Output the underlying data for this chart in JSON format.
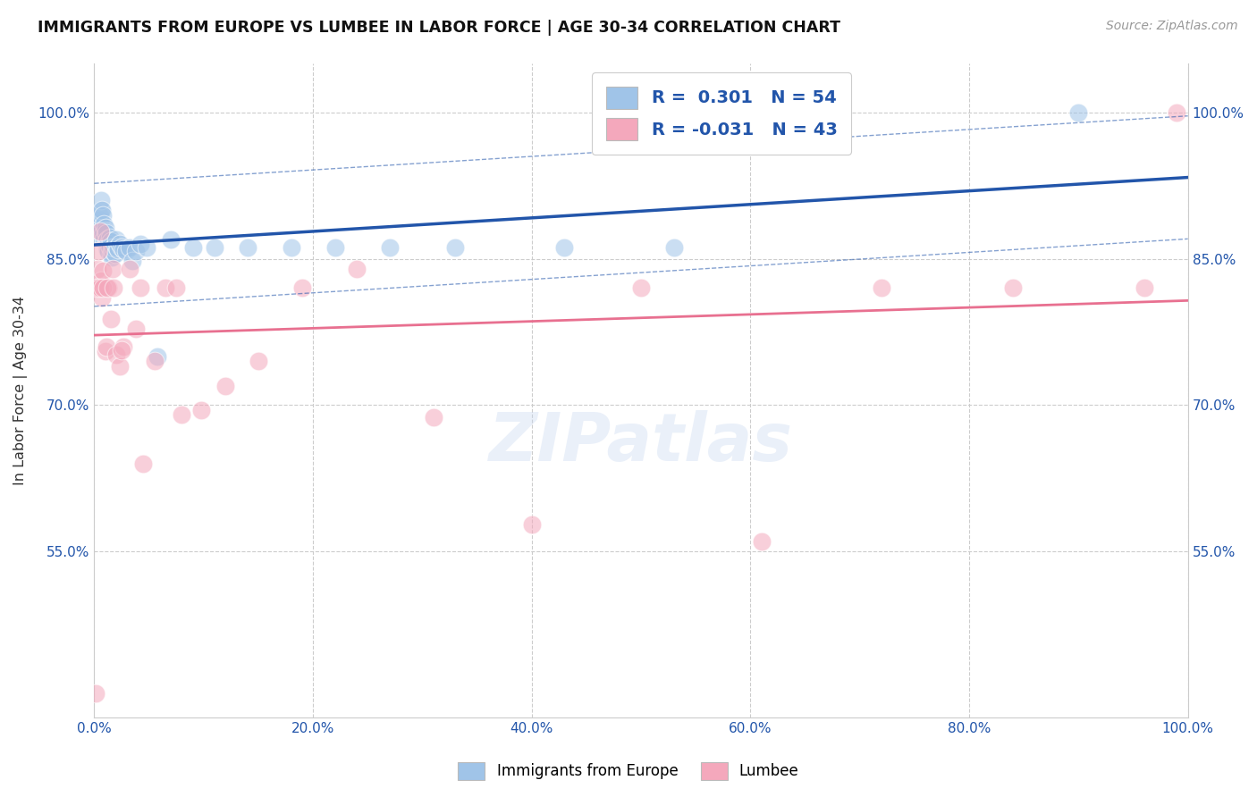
{
  "title": "IMMIGRANTS FROM EUROPE VS LUMBEE IN LABOR FORCE | AGE 30-34 CORRELATION CHART",
  "source": "Source: ZipAtlas.com",
  "ylabel": "In Labor Force | Age 30-34",
  "xlim": [
    0.0,
    1.0
  ],
  "ylim": [
    0.38,
    1.05
  ],
  "xticks": [
    0.0,
    0.2,
    0.4,
    0.6,
    0.8,
    1.0
  ],
  "xticklabels": [
    "0.0%",
    "20.0%",
    "40.0%",
    "60.0%",
    "80.0%",
    "100.0%"
  ],
  "yticks": [
    0.55,
    0.7,
    0.85,
    1.0
  ],
  "yticklabels": [
    "55.0%",
    "70.0%",
    "85.0%",
    "100.0%"
  ],
  "legend_R_blue": "0.301",
  "legend_N_blue": "54",
  "legend_R_pink": "-0.031",
  "legend_N_pink": "43",
  "blue_color": "#a0c4e8",
  "pink_color": "#f4a8bc",
  "trend_blue_color": "#2255aa",
  "trend_pink_color": "#e87090",
  "watermark": "ZIPatlas",
  "blue_scatter_x": [
    0.002,
    0.003,
    0.004,
    0.005,
    0.005,
    0.006,
    0.006,
    0.007,
    0.007,
    0.008,
    0.008,
    0.009,
    0.009,
    0.01,
    0.01,
    0.011,
    0.011,
    0.012,
    0.012,
    0.013,
    0.013,
    0.014,
    0.014,
    0.015,
    0.015,
    0.016,
    0.016,
    0.017,
    0.018,
    0.019,
    0.02,
    0.021,
    0.022,
    0.023,
    0.025,
    0.027,
    0.029,
    0.032,
    0.035,
    0.038,
    0.042,
    0.048,
    0.058,
    0.07,
    0.09,
    0.11,
    0.14,
    0.18,
    0.22,
    0.27,
    0.33,
    0.43,
    0.53,
    0.9
  ],
  "blue_scatter_y": [
    0.875,
    0.88,
    0.885,
    0.89,
    0.895,
    0.9,
    0.91,
    0.9,
    0.88,
    0.895,
    0.875,
    0.885,
    0.87,
    0.878,
    0.882,
    0.876,
    0.868,
    0.86,
    0.87,
    0.865,
    0.858,
    0.872,
    0.862,
    0.868,
    0.855,
    0.86,
    0.852,
    0.858,
    0.862,
    0.855,
    0.87,
    0.862,
    0.86,
    0.865,
    0.862,
    0.86,
    0.858,
    0.862,
    0.848,
    0.858,
    0.865,
    0.862,
    0.75,
    0.87,
    0.862,
    0.862,
    0.862,
    0.862,
    0.862,
    0.862,
    0.862,
    0.862,
    0.862,
    1.0
  ],
  "pink_scatter_x": [
    0.001,
    0.002,
    0.003,
    0.004,
    0.005,
    0.006,
    0.007,
    0.008,
    0.01,
    0.011,
    0.013,
    0.015,
    0.017,
    0.02,
    0.023,
    0.027,
    0.032,
    0.038,
    0.045,
    0.055,
    0.065,
    0.08,
    0.098,
    0.12,
    0.15,
    0.19,
    0.24,
    0.31,
    0.4,
    0.5,
    0.61,
    0.72,
    0.84,
    0.96,
    0.99,
    0.003,
    0.005,
    0.008,
    0.012,
    0.018,
    0.025,
    0.042,
    0.075
  ],
  "pink_scatter_y": [
    0.405,
    0.82,
    0.84,
    0.858,
    0.878,
    0.828,
    0.81,
    0.838,
    0.755,
    0.76,
    0.82,
    0.788,
    0.84,
    0.752,
    0.74,
    0.76,
    0.84,
    0.778,
    0.64,
    0.745,
    0.82,
    0.69,
    0.695,
    0.72,
    0.745,
    0.82,
    0.84,
    0.688,
    0.578,
    0.82,
    0.56,
    0.82,
    0.82,
    0.82,
    1.0,
    0.82,
    0.82,
    0.82,
    0.82,
    0.82,
    0.756,
    0.82,
    0.82
  ]
}
